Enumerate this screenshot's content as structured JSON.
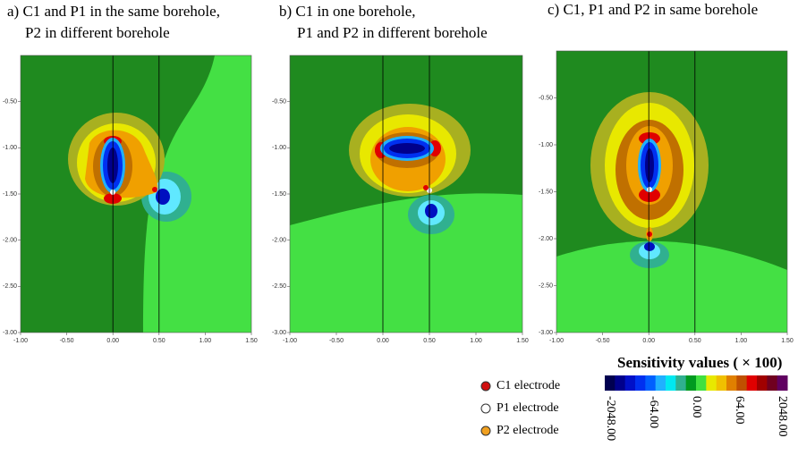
{
  "chart_data": [
    {
      "type": "contour",
      "title": [
        "a) C1 and P1 in the same borehole,",
        "P2 in different borehole"
      ],
      "xlim": [
        -1,
        1.5
      ],
      "ylim": [
        -3,
        0
      ],
      "xticks": [
        {
          "value": -1,
          "label": "-1.00"
        },
        {
          "value": -0.5,
          "label": "-0.50"
        },
        {
          "value": 0,
          "label": "0.00"
        },
        {
          "value": 0.5,
          "label": "0.50"
        },
        {
          "value": 1,
          "label": "1.00"
        },
        {
          "value": 1.5,
          "label": "1.50"
        }
      ],
      "yticks": [
        {
          "value": -0.5,
          "label": "-0.50"
        },
        {
          "value": -1,
          "label": "-1.00"
        },
        {
          "value": -1.5,
          "label": "-1.50"
        },
        {
          "value": -2,
          "label": "-2.00"
        },
        {
          "value": -2.5,
          "label": "-2.50"
        },
        {
          "value": -3,
          "label": "-3.00"
        }
      ],
      "boreholes": [
        0,
        0.5
      ]
    },
    {
      "type": "contour",
      "title": [
        "b) C1 in one borehole,",
        "P1 and P2 in different borehole"
      ],
      "xlim": [
        -1,
        1.5
      ],
      "ylim": [
        -3,
        0
      ],
      "xticks": [
        {
          "value": -1,
          "label": "-1.00"
        },
        {
          "value": -0.5,
          "label": "-0.50"
        },
        {
          "value": 0,
          "label": "0.00"
        },
        {
          "value": 0.5,
          "label": "0.50"
        },
        {
          "value": 1,
          "label": "1.00"
        },
        {
          "value": 1.5,
          "label": "1.50"
        }
      ],
      "yticks": [
        {
          "value": -0.5,
          "label": "-0.50"
        },
        {
          "value": -1,
          "label": "-1.00"
        },
        {
          "value": -1.5,
          "label": "-1.50"
        },
        {
          "value": -2,
          "label": "-2.00"
        },
        {
          "value": -2.5,
          "label": "-2.50"
        },
        {
          "value": -3,
          "label": "-3.00"
        }
      ],
      "boreholes": [
        0,
        0.5
      ]
    },
    {
      "type": "contour",
      "title": [
        "c) C1, P1 and P2 in same borehole"
      ],
      "xlim": [
        -1,
        1.5
      ],
      "ylim": [
        -3,
        0
      ],
      "xticks": [
        {
          "value": -1,
          "label": "-1.00"
        },
        {
          "value": -0.5,
          "label": "-0.50"
        },
        {
          "value": 0,
          "label": "0.00"
        },
        {
          "value": 0.5,
          "label": "0.50"
        },
        {
          "value": 1,
          "label": "1.00"
        },
        {
          "value": 1.5,
          "label": "1.50"
        }
      ],
      "yticks": [
        {
          "value": -0.5,
          "label": "-0.50"
        },
        {
          "value": -1,
          "label": "-1.00"
        },
        {
          "value": -1.5,
          "label": "-1.50"
        },
        {
          "value": -2,
          "label": "-2.00"
        },
        {
          "value": -2.5,
          "label": "-2.50"
        },
        {
          "value": -3,
          "label": "-3.00"
        }
      ],
      "boreholes": [
        0,
        0.5
      ]
    }
  ],
  "colorbar": {
    "title": "Sensitivity values ( × 100)",
    "colors": [
      "#000050",
      "#00008c",
      "#0010c8",
      "#0030f0",
      "#0060ff",
      "#20b0ff",
      "#00e8f0",
      "#30b090",
      "#009a20",
      "#40e040",
      "#e8e800",
      "#f0c000",
      "#e08000",
      "#c05000",
      "#e00000",
      "#a00000",
      "#700020",
      "#600060"
    ],
    "ticks": [
      {
        "value": -2048,
        "label": "-2048.00"
      },
      {
        "value": -64,
        "label": "-64.00"
      },
      {
        "value": 0,
        "label": "0.00"
      },
      {
        "value": 64,
        "label": "64.00"
      },
      {
        "value": 2048,
        "label": "2048.00"
      }
    ]
  },
  "legend": [
    {
      "name": "C1 electrode",
      "color": "#d01010"
    },
    {
      "name": "P1 electrode",
      "color": "#ffffff"
    },
    {
      "name": "P2 electrode",
      "color": "#f0a020"
    }
  ]
}
